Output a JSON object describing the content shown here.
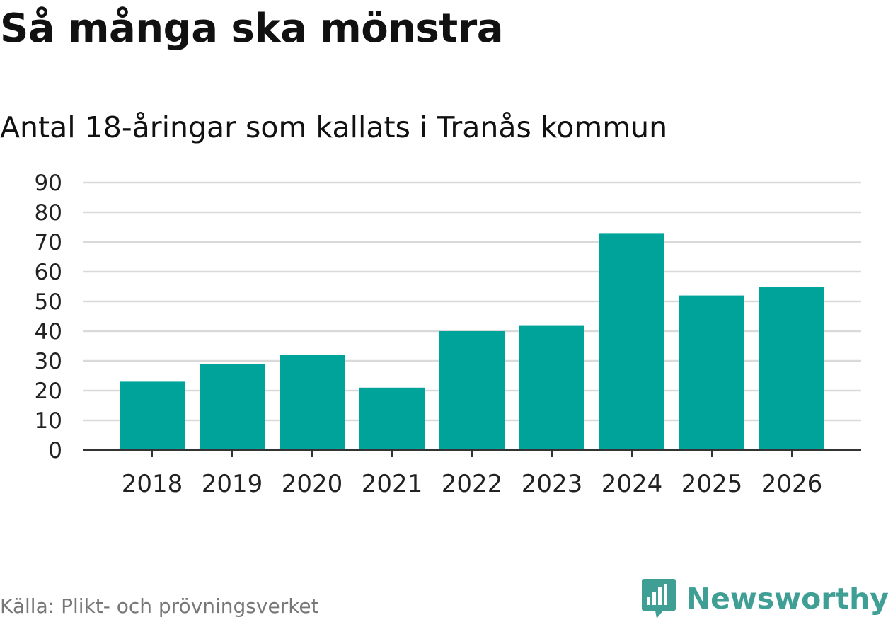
{
  "header": {
    "title": "Så många ska mönstra",
    "subtitle": "Antal 18-åringar som kallats i Tranås kommun"
  },
  "footer": {
    "source": "Källa: Plikt- och prövningsverket",
    "brand": "Newsworthy",
    "brand_color": "#3f9f94"
  },
  "colors": {
    "bar": "#00a39a",
    "grid": "#d9d9d9",
    "axis": "#333333"
  },
  "chart_data": {
    "type": "bar",
    "title": "Så många ska mönstra",
    "subtitle": "Antal 18-åringar som kallats i Tranås kommun",
    "categories": [
      "2018",
      "2019",
      "2020",
      "2021",
      "2022",
      "2023",
      "2024",
      "2025",
      "2026"
    ],
    "values": [
      23,
      29,
      32,
      21,
      40,
      42,
      73,
      52,
      55
    ],
    "xlabel": "",
    "ylabel": "",
    "ylim": [
      0,
      90
    ],
    "yticks": [
      0,
      10,
      20,
      30,
      40,
      50,
      60,
      70,
      80,
      90
    ],
    "grid": true
  }
}
